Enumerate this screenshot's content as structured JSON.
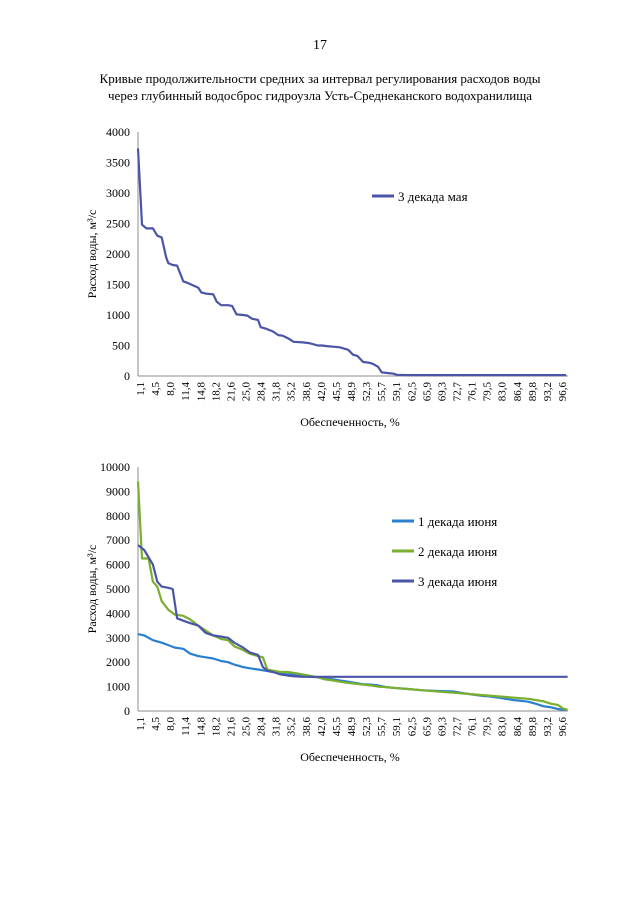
{
  "page": {
    "number": "17",
    "title_line1": "Кривые продолжительности средних за интервал регулирования расходов воды",
    "title_line2": "через глубинный водосброс гидроузла Усть-Среднеканского водохранилища"
  },
  "colors": {
    "series_a": "#4a55a8",
    "series_b": "#2b7fcf",
    "series_c": "#7aae2e",
    "series_d": "#4a55a8",
    "axis": "#8c8c8c"
  },
  "chart_data": [
    {
      "type": "line",
      "xlabel": "Обеспеченность, %",
      "ylabel": "Расход воды, м³/с",
      "ylim": [
        0,
        4000
      ],
      "yticks": [
        0,
        500,
        1000,
        1500,
        2000,
        2500,
        3000,
        3500,
        4000
      ],
      "x_tick_labels": [
        "1,1",
        "4,5",
        "8,0",
        "11,4",
        "14,8",
        "18,2",
        "21,6",
        "25,0",
        "28,4",
        "31,8",
        "35,2",
        "38,6",
        "42,0",
        "45,5",
        "48,9",
        "52,3",
        "55,7",
        "59,1",
        "62,5",
        "65,9",
        "69,3",
        "72,7",
        "76,1",
        "79,5",
        "83,0",
        "86,4",
        "89,8",
        "93,2",
        "96,6"
      ],
      "legend_position": "right",
      "series": [
        {
          "name": "3 декада мая",
          "x": [
            1.1,
            2,
            3,
            4.5,
            5.5,
            6.5,
            7.5,
            8.0,
            9,
            10,
            11.4,
            12.3,
            13.5,
            14.8,
            15.5,
            16.5,
            18.2,
            19,
            20,
            21.6,
            22.5,
            23.5,
            25.0,
            26,
            27,
            28.4,
            29,
            30,
            31.8,
            33,
            34,
            35.2,
            36.5,
            38.6,
            40,
            42.0,
            43,
            44,
            45.5,
            47,
            48.9,
            50,
            51,
            52.3,
            53.5,
            54.5,
            55.7,
            56.5,
            57.5,
            59.1,
            60,
            62.5,
            65.9,
            69.3,
            72.7,
            76.1,
            79.5,
            83.0,
            86.4,
            89.8,
            93.2,
            96.6,
            98.5
          ],
          "y": [
            3730,
            2480,
            2420,
            2420,
            2300,
            2270,
            1950,
            1850,
            1820,
            1810,
            1550,
            1530,
            1490,
            1450,
            1370,
            1350,
            1340,
            1220,
            1160,
            1160,
            1150,
            1010,
            1000,
            990,
            940,
            920,
            800,
            780,
            730,
            670,
            660,
            620,
            560,
            550,
            540,
            500,
            500,
            490,
            480,
            470,
            430,
            350,
            330,
            230,
            220,
            200,
            150,
            60,
            50,
            40,
            20,
            15,
            15,
            15,
            15,
            15,
            15,
            15,
            15,
            15,
            15,
            15,
            15
          ]
        }
      ]
    },
    {
      "type": "line",
      "xlabel": "Обеспеченность, %",
      "ylabel": "Расход воды, м³/с",
      "ylim": [
        0,
        10000
      ],
      "yticks": [
        0,
        1000,
        2000,
        3000,
        4000,
        5000,
        6000,
        7000,
        8000,
        9000,
        10000
      ],
      "x_tick_labels": [
        "1,1",
        "4,5",
        "8,0",
        "11,4",
        "14,8",
        "18,2",
        "21,6",
        "25,0",
        "28,4",
        "31,8",
        "35,2",
        "38,6",
        "42,0",
        "45,5",
        "48,9",
        "52,3",
        "55,7",
        "59,1",
        "62,5",
        "65,9",
        "69,3",
        "72,7",
        "76,1",
        "79,5",
        "83,0",
        "86,4",
        "89,8",
        "93,2",
        "96,6"
      ],
      "legend_position": "right",
      "series": [
        {
          "name": "1 декада июня",
          "x": [
            1.1,
            2.5,
            4.5,
            6.5,
            8.0,
            9.5,
            11.4,
            13,
            14.8,
            16.5,
            18.2,
            20,
            21.6,
            23,
            25.0,
            26.5,
            28.4,
            30,
            31.8,
            33.5,
            35.2,
            37,
            38.6,
            40,
            42.0,
            43.5,
            45.5,
            47,
            48.9,
            50.5,
            52.3,
            54,
            55.7,
            57.5,
            59.1,
            62.5,
            65.9,
            69.3,
            72.7,
            74.5,
            76.1,
            79.5,
            81,
            83.0,
            86.4,
            89.8,
            91.5,
            93.2,
            95,
            96.6,
            98.5
          ],
          "y": [
            3150,
            3100,
            2900,
            2800,
            2700,
            2600,
            2550,
            2350,
            2250,
            2200,
            2150,
            2050,
            2000,
            1900,
            1800,
            1750,
            1700,
            1650,
            1600,
            1550,
            1500,
            1500,
            1450,
            1400,
            1380,
            1350,
            1300,
            1250,
            1200,
            1150,
            1100,
            1080,
            1050,
            980,
            950,
            900,
            850,
            820,
            800,
            750,
            700,
            620,
            600,
            550,
            450,
            380,
            300,
            200,
            150,
            80,
            40
          ]
        },
        {
          "name": "2 декада июня",
          "x": [
            1.1,
            2.0,
            3.5,
            4.5,
            5.5,
            6.5,
            8.0,
            9.5,
            11.4,
            13,
            14.8,
            16.5,
            18.2,
            20,
            21.6,
            23,
            25.0,
            26.5,
            28.4,
            29.5,
            30.5,
            31.8,
            33.5,
            35.2,
            37,
            38.6,
            40,
            42.0,
            43.5,
            45.5,
            47,
            48.9,
            50.5,
            52.3,
            54,
            55.7,
            57.5,
            59.1,
            62.5,
            65.9,
            69.3,
            72.7,
            76.1,
            79.5,
            83.0,
            86.4,
            89.8,
            91.5,
            93.2,
            95,
            96.6,
            97.8,
            98.8
          ],
          "y": [
            9400,
            6250,
            6250,
            5300,
            5100,
            4500,
            4150,
            3950,
            3900,
            3750,
            3500,
            3300,
            3100,
            2950,
            2900,
            2650,
            2500,
            2350,
            2250,
            2200,
            1700,
            1650,
            1600,
            1600,
            1550,
            1500,
            1450,
            1380,
            1300,
            1250,
            1200,
            1150,
            1120,
            1080,
            1050,
            1000,
            980,
            950,
            900,
            850,
            800,
            750,
            700,
            650,
            600,
            550,
            500,
            450,
            400,
            300,
            250,
            100,
            50
          ]
        },
        {
          "name": "3 декада июня",
          "x": [
            1.1,
            2.5,
            3.5,
            4.5,
            5.5,
            6.5,
            8.0,
            9.0,
            10.0,
            11.4,
            13,
            14.8,
            16.5,
            18.2,
            20,
            21.6,
            23,
            25.0,
            26.5,
            28.4,
            29.5,
            30.5,
            31.8,
            33.5,
            35.2,
            37,
            38.6,
            40,
            42.0,
            45.5,
            48.9,
            52.3,
            55.7,
            59.1,
            62.5,
            65.9,
            69.3,
            72.7,
            76.1,
            79.5,
            83.0,
            86.4,
            89.8,
            93.2,
            96.6,
            98.8
          ],
          "y": [
            6800,
            6600,
            6300,
            6000,
            5300,
            5100,
            5050,
            5000,
            3800,
            3700,
            3600,
            3500,
            3200,
            3100,
            3050,
            3000,
            2800,
            2600,
            2400,
            2300,
            1800,
            1650,
            1600,
            1500,
            1450,
            1420,
            1400,
            1400,
            1400,
            1400,
            1400,
            1400,
            1400,
            1400,
            1400,
            1400,
            1400,
            1400,
            1400,
            1400,
            1400,
            1400,
            1400,
            1400,
            1400,
            1400
          ]
        }
      ]
    }
  ]
}
